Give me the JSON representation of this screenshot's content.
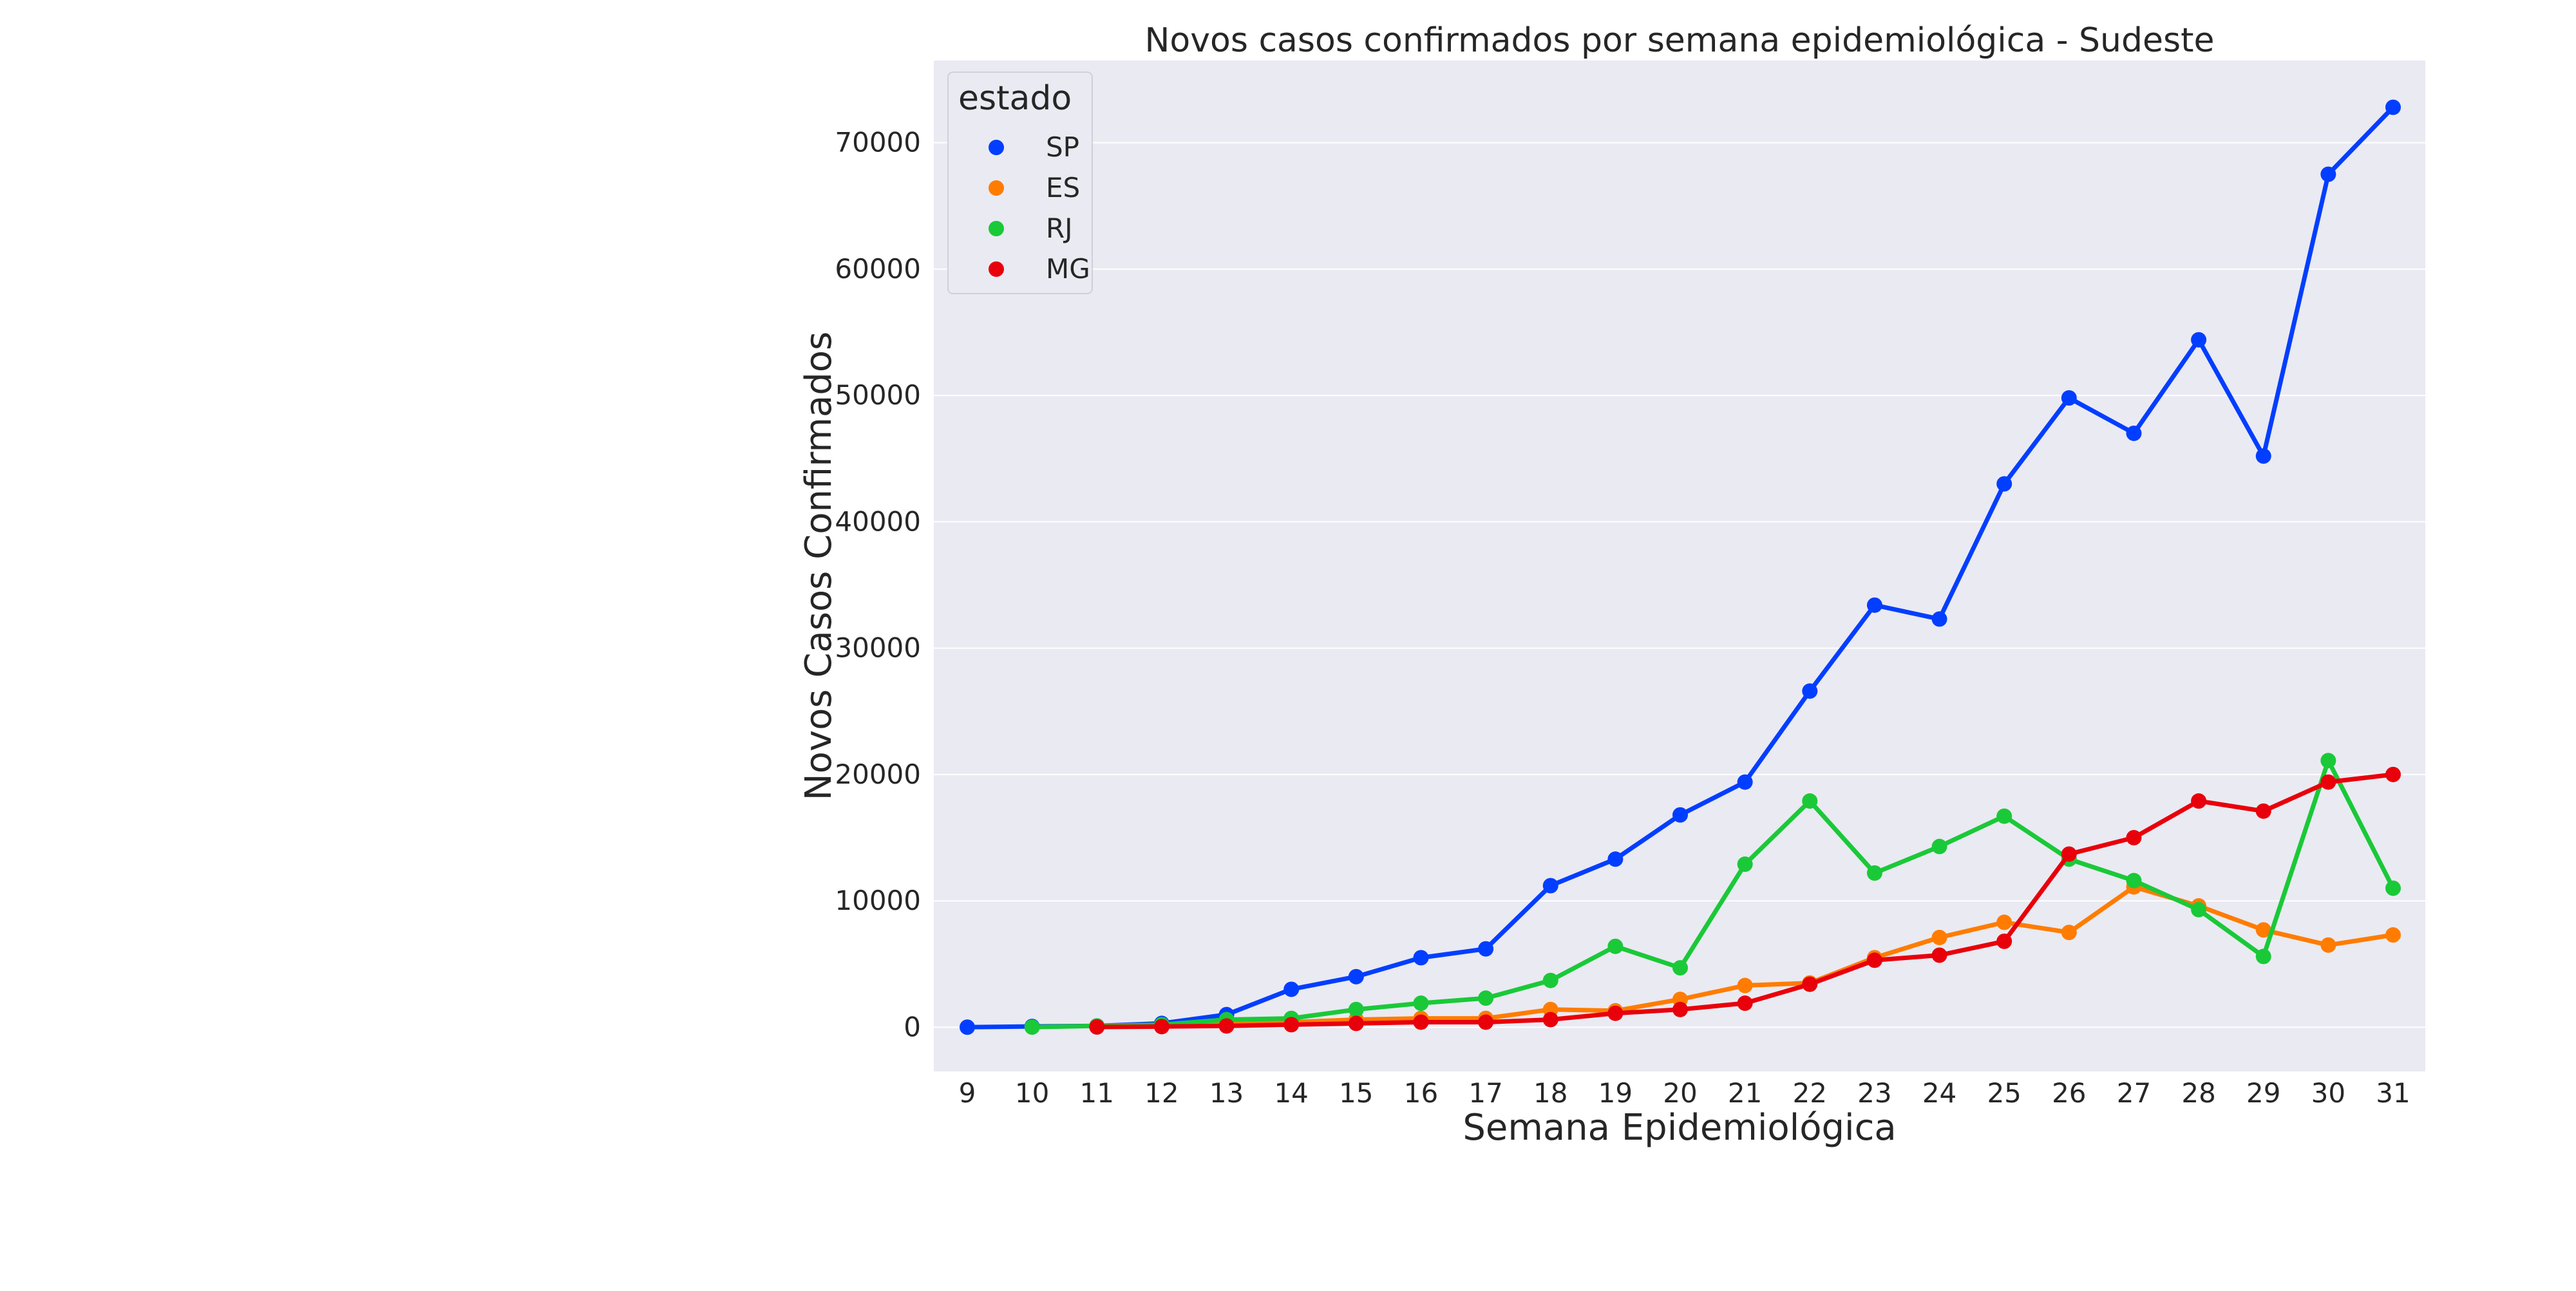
{
  "chart_data": {
    "type": "line",
    "title": "Novos casos confirmados por semana epidemiológica - Sudeste",
    "xlabel": "Semana Epidemiológica",
    "ylabel": "Novos Casos Confirmados",
    "x": [
      9,
      10,
      11,
      12,
      13,
      14,
      15,
      16,
      17,
      18,
      19,
      20,
      21,
      22,
      23,
      24,
      25,
      26,
      27,
      28,
      29,
      30,
      31
    ],
    "y_ticks": [
      0,
      10000,
      20000,
      30000,
      40000,
      50000,
      60000,
      70000
    ],
    "ylim": [
      -3500,
      76500
    ],
    "grid": true,
    "legend": {
      "title": "estado",
      "position": "top-left"
    },
    "series": [
      {
        "name": "SP",
        "color": "#023eff",
        "values": [
          2,
          60,
          100,
          300,
          1000,
          3000,
          4000,
          5500,
          6200,
          11200,
          13300,
          16800,
          19400,
          26600,
          33400,
          32300,
          43000,
          49800,
          47000,
          54400,
          45200,
          67500,
          72800
        ]
      },
      {
        "name": "ES",
        "color": "#ff7c00",
        "values": [
          null,
          null,
          20,
          50,
          300,
          400,
          600,
          700,
          700,
          1400,
          1300,
          2200,
          3300,
          3500,
          5500,
          7100,
          8300,
          7500,
          11100,
          9600,
          7700,
          6500,
          7300
        ]
      },
      {
        "name": "RJ",
        "color": "#1ac938",
        "values": [
          null,
          10,
          100,
          200,
          600,
          700,
          1400,
          1900,
          2300,
          3700,
          6400,
          4700,
          12900,
          17900,
          12200,
          14300,
          16700,
          13300,
          11600,
          9300,
          5600,
          21100,
          11000
        ]
      },
      {
        "name": "MG",
        "color": "#e8000b",
        "values": [
          null,
          null,
          20,
          50,
          100,
          200,
          300,
          400,
          400,
          600,
          1100,
          1400,
          1900,
          3400,
          5300,
          5700,
          6800,
          13700,
          15000,
          17900,
          17100,
          19400,
          20000
        ]
      }
    ]
  }
}
